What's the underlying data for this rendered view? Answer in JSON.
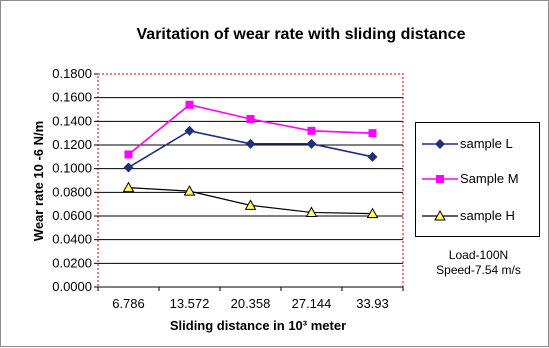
{
  "chart_data": {
    "type": "line",
    "title": "Varitation of wear rate with sliding distance",
    "xlabel": "Sliding distance in 10³ meter",
    "ylabel": "Wear rate 10 -6 N/m",
    "categories": [
      "6.786",
      "13.572",
      "20.358",
      "27.144",
      "33.93"
    ],
    "ylim": [
      0,
      0.18
    ],
    "yticks": [
      "0.0000",
      "0.0200",
      "0.0400",
      "0.0600",
      "0.0800",
      "0.1000",
      "0.1200",
      "0.1400",
      "0.1600",
      "0.1800"
    ],
    "grid": true,
    "legend_position": "right",
    "series": [
      {
        "name": "sample L",
        "values": [
          0.101,
          0.132,
          0.121,
          0.121,
          0.11
        ],
        "color": "#1f2f7a",
        "marker": "diamond"
      },
      {
        "name": "Sample M",
        "values": [
          0.112,
          0.154,
          0.142,
          0.132,
          0.13
        ],
        "color": "#ff00ff",
        "marker": "square"
      },
      {
        "name": "sample H",
        "values": [
          0.084,
          0.081,
          0.069,
          0.063,
          0.062
        ],
        "color": "#000000",
        "marker": "triangle",
        "marker_fill": "#ffff66"
      }
    ],
    "annotations": [
      "Load-100N",
      "Speed-7.54 m/s"
    ],
    "plot_border_color": "#cc0000"
  }
}
